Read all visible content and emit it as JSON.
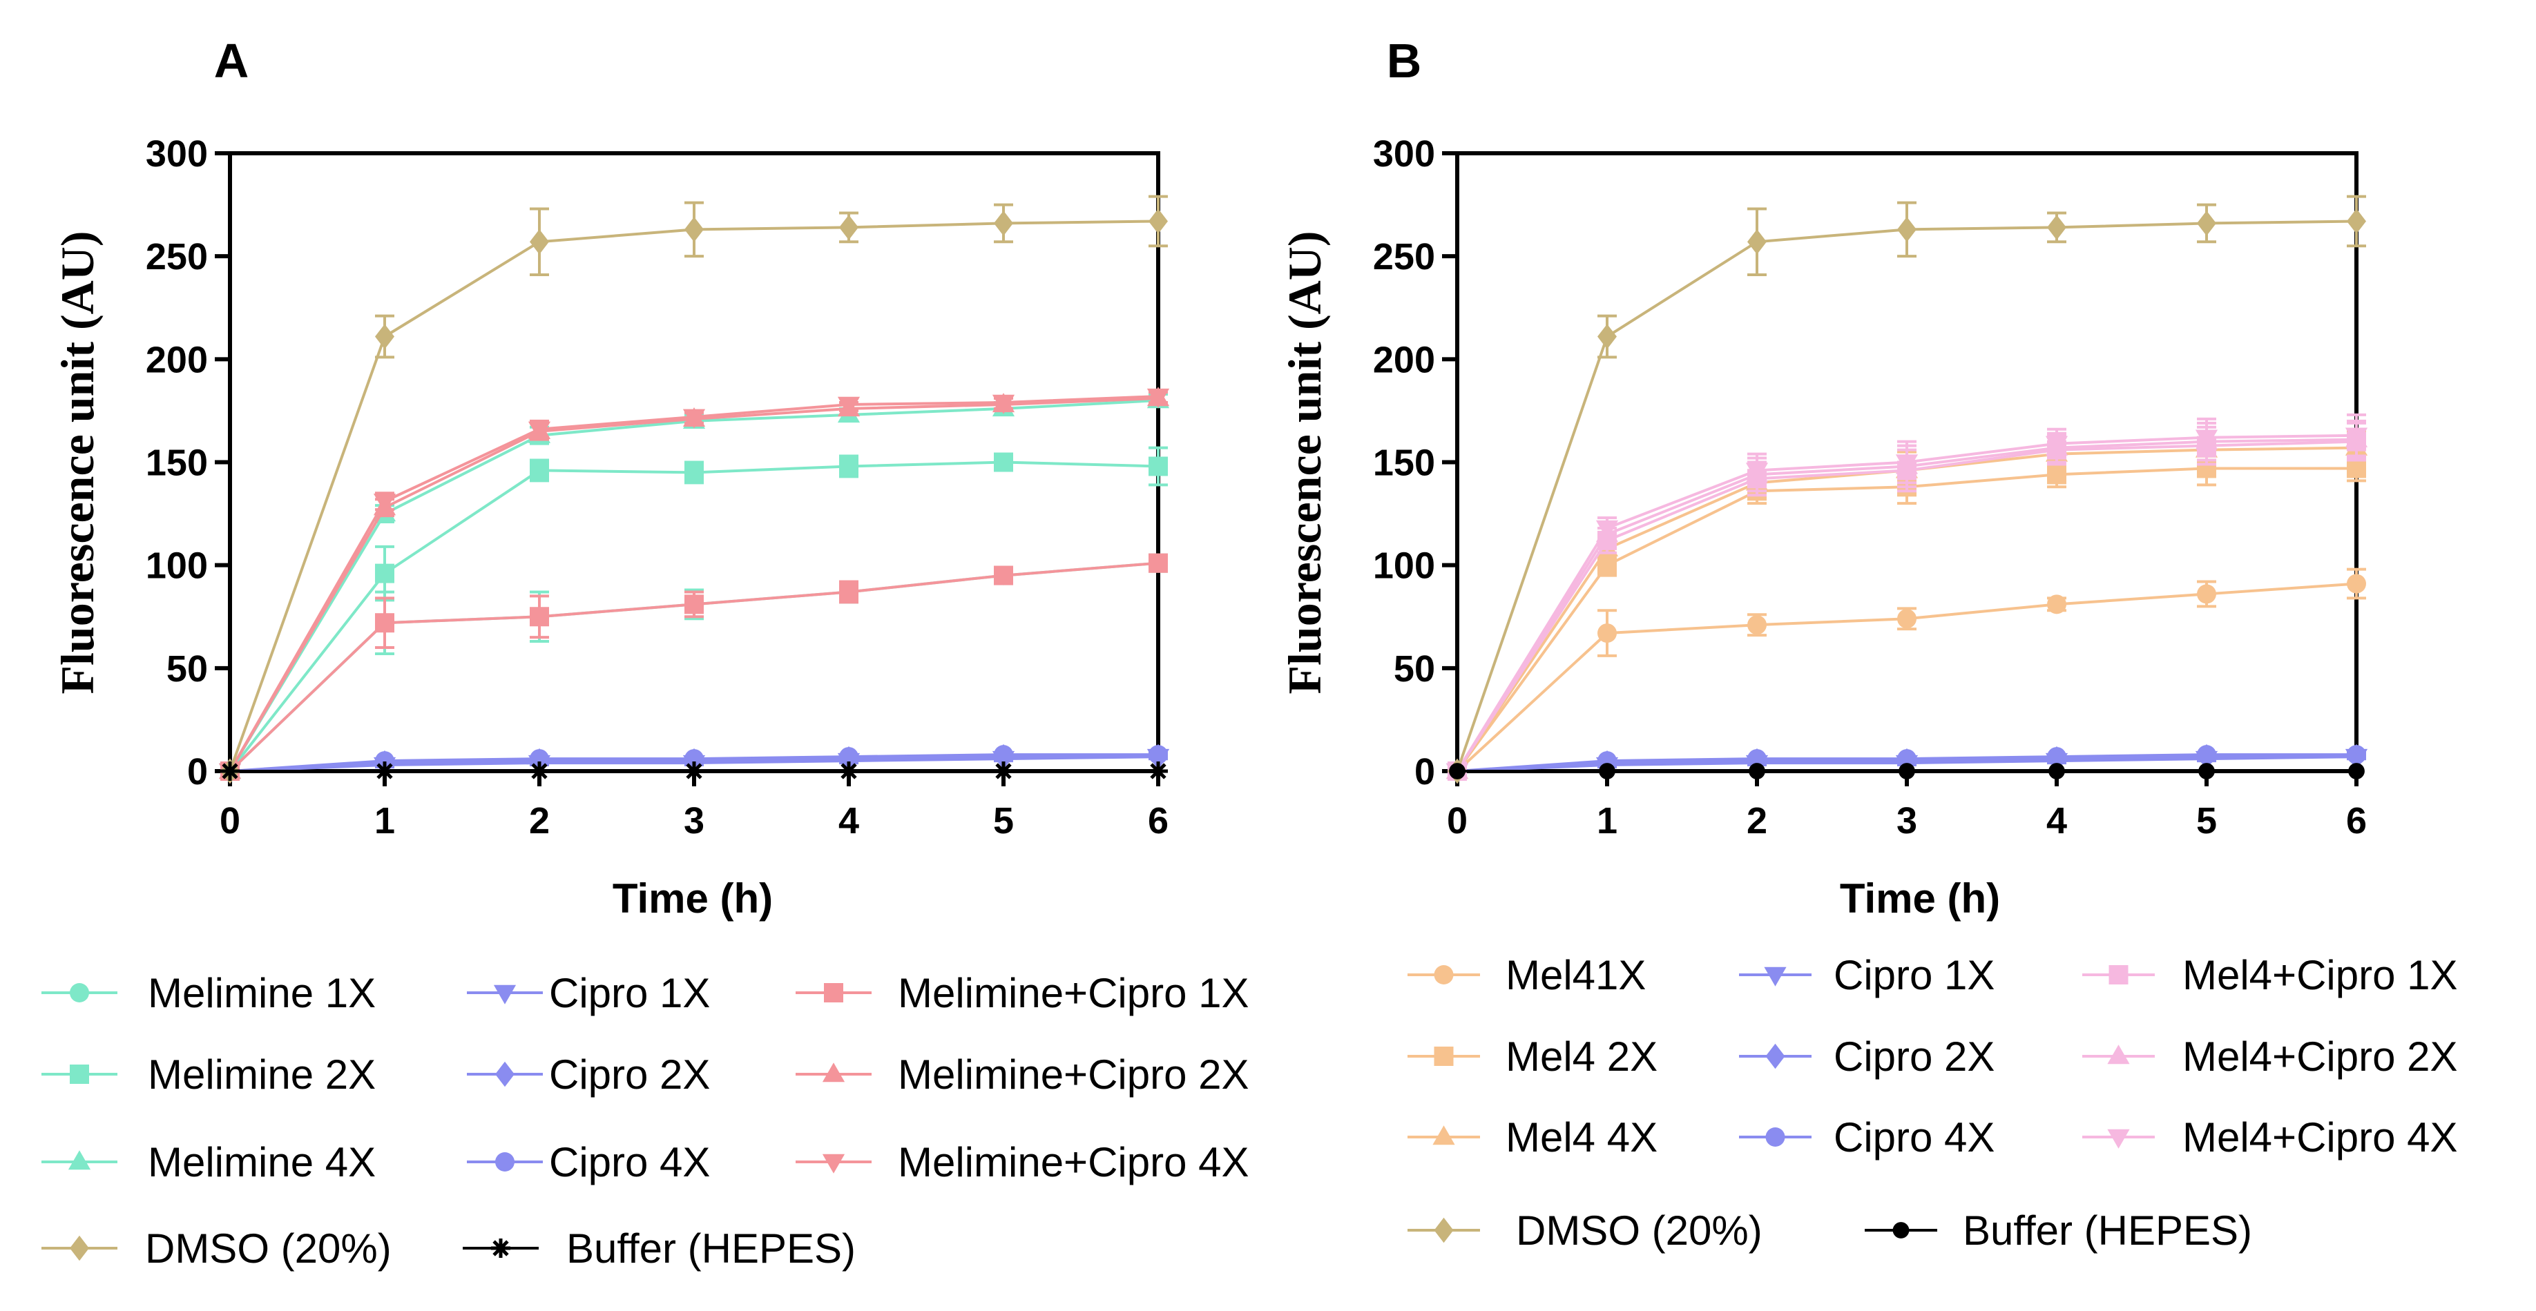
{
  "chart_data": [
    {
      "panel": "A",
      "type": "line",
      "xlabel": "Time (h)",
      "ylabel": "Fluorescence unit (AU)",
      "x": [
        0,
        1,
        2,
        3,
        4,
        5,
        6
      ],
      "xlim": [
        0,
        6
      ],
      "ylim": [
        0,
        300
      ],
      "xticks": [
        "0",
        "1",
        "2",
        "3",
        "4",
        "5",
        "6"
      ],
      "yticks": [
        "0",
        "50",
        "100",
        "150",
        "200",
        "250",
        "300"
      ],
      "legend_position": "bottom",
      "series": [
        {
          "name": "Melimine 1X",
          "color": "#7ee8c8",
          "marker": "circle",
          "values": [
            0,
            72,
            75,
            81,
            87,
            95,
            101
          ],
          "errors": [
            0,
            15,
            12,
            7,
            5,
            4,
            4
          ]
        },
        {
          "name": "Melimine 2X",
          "color": "#7ee8c8",
          "marker": "square",
          "values": [
            0,
            96,
            146,
            145,
            148,
            150,
            148
          ],
          "errors": [
            0,
            13,
            5,
            5,
            5,
            4,
            9
          ]
        },
        {
          "name": "Melimine 4X",
          "color": "#7ee8c8",
          "marker": "triangle-up",
          "values": [
            0,
            125,
            163,
            170,
            173,
            176,
            180
          ],
          "errors": [
            0,
            4,
            4,
            3,
            3,
            3,
            3
          ]
        },
        {
          "name": "Cipro 1X",
          "color": "#8a8cf0",
          "marker": "triangle-down",
          "values": [
            0,
            3,
            4,
            4,
            5,
            6,
            7
          ],
          "errors": [
            0,
            1,
            1,
            1,
            1,
            1,
            1
          ]
        },
        {
          "name": "Cipro 2X",
          "color": "#8a8cf0",
          "marker": "diamond",
          "values": [
            0,
            4,
            5,
            5,
            6,
            7,
            7
          ],
          "errors": [
            0,
            1,
            1,
            1,
            1,
            1,
            1
          ]
        },
        {
          "name": "Cipro 4X",
          "color": "#8a8cf0",
          "marker": "circle",
          "values": [
            0,
            5,
            6,
            6,
            7,
            8,
            8
          ],
          "errors": [
            0,
            1,
            1,
            1,
            1,
            1,
            1
          ]
        },
        {
          "name": "Melimine+Cipro 1X",
          "color": "#f4949a",
          "marker": "square",
          "values": [
            0,
            72,
            75,
            81,
            87,
            95,
            101
          ],
          "errors": [
            0,
            12,
            10,
            6,
            5,
            4,
            4
          ]
        },
        {
          "name": "Melimine+Cipro 2X",
          "color": "#f4949a",
          "marker": "triangle-up",
          "values": [
            0,
            128,
            165,
            171,
            176,
            178,
            181
          ],
          "errors": [
            0,
            4,
            4,
            3,
            3,
            3,
            3
          ]
        },
        {
          "name": "Melimine+Cipro 4X",
          "color": "#f4949a",
          "marker": "triangle-down",
          "values": [
            0,
            131,
            166,
            172,
            178,
            179,
            182
          ],
          "errors": [
            0,
            4,
            4,
            3,
            3,
            3,
            3
          ]
        },
        {
          "name": "DMSO (20%)",
          "color": "#c8b47a",
          "marker": "diamond",
          "values": [
            0,
            211,
            257,
            263,
            264,
            266,
            267
          ],
          "errors": [
            0,
            10,
            16,
            13,
            7,
            9,
            12
          ]
        },
        {
          "name": "Buffer (HEPES)",
          "color": "#000000",
          "marker": "star",
          "values": [
            0,
            0,
            0,
            0,
            0,
            0,
            0
          ],
          "errors": [
            0,
            0,
            0,
            0,
            0,
            0,
            0
          ]
        }
      ]
    },
    {
      "panel": "B",
      "type": "line",
      "xlabel": "Time (h)",
      "ylabel": "Fluorescence unit (AU)",
      "x": [
        0,
        1,
        2,
        3,
        4,
        5,
        6
      ],
      "xlim": [
        0,
        6
      ],
      "ylim": [
        0,
        300
      ],
      "xticks": [
        "0",
        "1",
        "2",
        "3",
        "4",
        "5",
        "6"
      ],
      "yticks": [
        "0",
        "50",
        "100",
        "150",
        "200",
        "250",
        "300"
      ],
      "legend_position": "bottom",
      "series": [
        {
          "name": "Mel41X",
          "color": "#f7c28e",
          "marker": "circle",
          "values": [
            0,
            67,
            71,
            74,
            81,
            86,
            91
          ],
          "errors": [
            0,
            11,
            5,
            5,
            3,
            6,
            7
          ]
        },
        {
          "name": "Mel4 2X",
          "color": "#f7c28e",
          "marker": "square",
          "values": [
            0,
            100,
            136,
            138,
            144,
            147,
            147
          ],
          "errors": [
            0,
            5,
            6,
            8,
            6,
            8,
            6
          ]
        },
        {
          "name": "Mel4 4X",
          "color": "#f7c28e",
          "marker": "triangle-up",
          "values": [
            0,
            108,
            140,
            146,
            154,
            156,
            157
          ],
          "errors": [
            0,
            5,
            6,
            9,
            8,
            9,
            8
          ]
        },
        {
          "name": "Cipro 1X",
          "color": "#8a8cf0",
          "marker": "triangle-down",
          "values": [
            0,
            3,
            4,
            4,
            5,
            6,
            7
          ],
          "errors": [
            0,
            1,
            1,
            1,
            1,
            1,
            1
          ]
        },
        {
          "name": "Cipro 2X",
          "color": "#8a8cf0",
          "marker": "diamond",
          "values": [
            0,
            4,
            5,
            5,
            6,
            7,
            7
          ],
          "errors": [
            0,
            1,
            1,
            1,
            1,
            1,
            1
          ]
        },
        {
          "name": "Cipro 4X",
          "color": "#8a8cf0",
          "marker": "circle",
          "values": [
            0,
            5,
            6,
            6,
            7,
            8,
            8
          ],
          "errors": [
            0,
            1,
            1,
            1,
            1,
            1,
            1
          ]
        },
        {
          "name": "Mel4+Cipro 1X",
          "color": "#f6b8e0",
          "marker": "square",
          "values": [
            0,
            112,
            142,
            146,
            156,
            158,
            160
          ],
          "errors": [
            0,
            6,
            8,
            10,
            7,
            9,
            9
          ]
        },
        {
          "name": "Mel4+Cipro 2X",
          "color": "#f6b8e0",
          "marker": "triangle-up",
          "values": [
            0,
            115,
            144,
            148,
            157,
            160,
            161
          ],
          "errors": [
            0,
            6,
            8,
            10,
            7,
            9,
            9
          ]
        },
        {
          "name": "Mel4+Cipro 4X",
          "color": "#f6b8e0",
          "marker": "triangle-down",
          "values": [
            0,
            118,
            146,
            150,
            159,
            162,
            163
          ],
          "errors": [
            0,
            5,
            8,
            10,
            7,
            9,
            10
          ]
        },
        {
          "name": "DMSO (20%)",
          "color": "#c8b47a",
          "marker": "diamond",
          "values": [
            0,
            211,
            257,
            263,
            264,
            266,
            267
          ],
          "errors": [
            0,
            10,
            16,
            13,
            7,
            9,
            12
          ]
        },
        {
          "name": "Buffer (HEPES)",
          "color": "#000000",
          "marker": "dot",
          "values": [
            0,
            0,
            0,
            0,
            0,
            0,
            0
          ],
          "errors": [
            0,
            0,
            0,
            0,
            0,
            0,
            0
          ]
        }
      ]
    }
  ]
}
